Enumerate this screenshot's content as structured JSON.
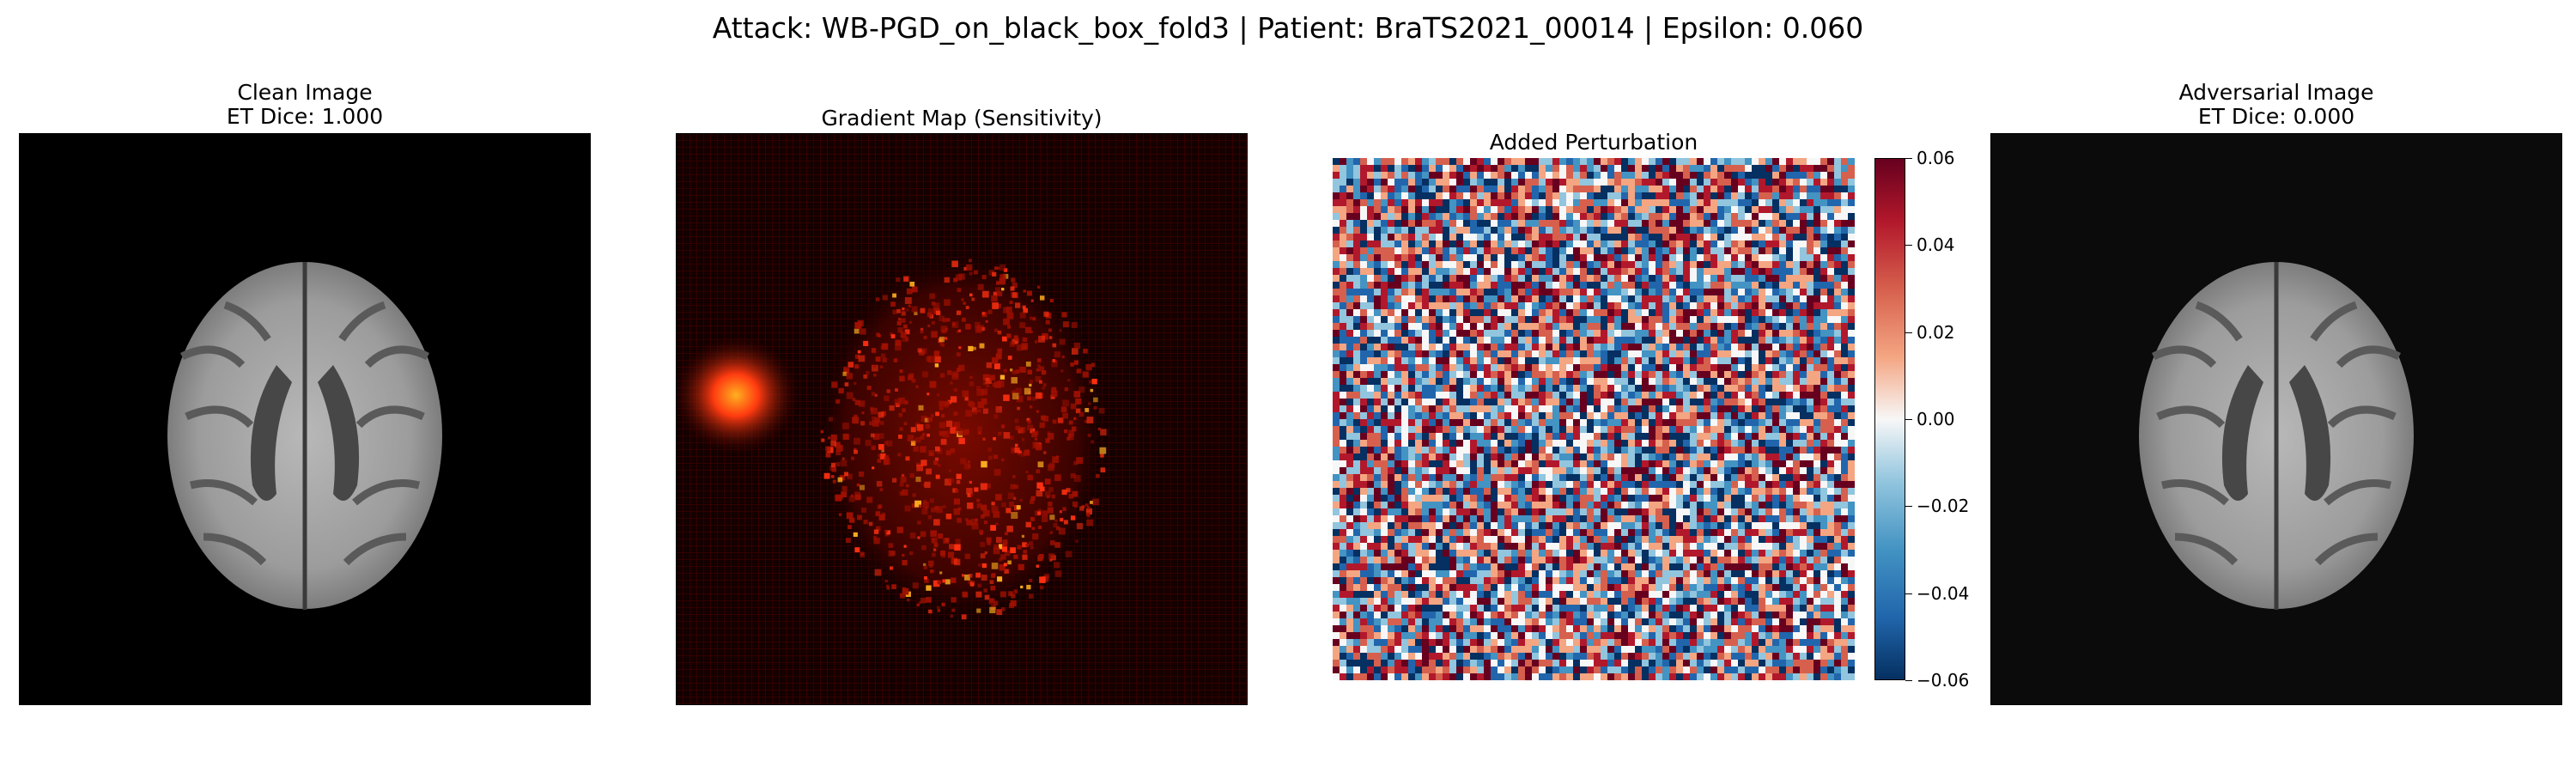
{
  "figure": {
    "suptitle": "Attack: WB-PGD_on_black_box_fold3 | Patient: BraTS2021_00014 | Epsilon: 0.060"
  },
  "panels": {
    "clean": {
      "title": "Clean Image",
      "subtitle": "ET Dice: 1.000"
    },
    "gradient": {
      "title": "Gradient Map (Sensitivity)"
    },
    "perturbation": {
      "title": "Added Perturbation"
    },
    "adversarial": {
      "title": "Adversarial Image",
      "subtitle": "ET Dice: 0.000"
    }
  },
  "colorbar": {
    "colormap": "red-white-blue (RdBu_r)",
    "ticks": [
      "0.06",
      "0.04",
      "0.02",
      "0.00",
      "−0.02",
      "−0.04",
      "−0.06"
    ],
    "range": [
      -0.06,
      0.06
    ]
  }
}
